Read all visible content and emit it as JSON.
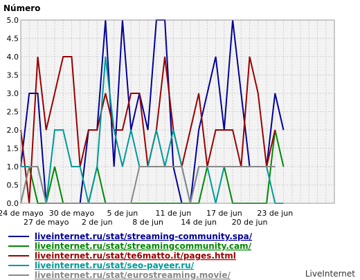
{
  "chart_data": {
    "type": "line",
    "ylabel": "Número",
    "ylim": [
      0,
      5
    ],
    "yticks": [
      "0.0",
      "0.5",
      "1.0",
      "1.5",
      "2.0",
      "2.5",
      "3.0",
      "3.5",
      "4.0",
      "4.5",
      "5.0"
    ],
    "grid": true,
    "x_dates": [
      "24 may",
      "25 may",
      "26 may",
      "27 may",
      "28 may",
      "29 may",
      "30 may",
      "31 may",
      "1 jun",
      "2 jun",
      "3 jun",
      "4 jun",
      "5 jun",
      "6 jun",
      "7 jun",
      "8 jun",
      "9 jun",
      "10 jun",
      "11 jun",
      "12 jun",
      "13 jun",
      "14 jun",
      "15 jun",
      "16 jun",
      "17 jun",
      "18 jun",
      "19 jun",
      "20 jun",
      "21 jun",
      "22 jun",
      "23 jun",
      "24 jun",
      "25 jun",
      "26 jun",
      "27 jun",
      "28 jun",
      "29 jun",
      "30 jun"
    ],
    "x_ticks_upper": [
      {
        "day": 0,
        "label": "24 de mayo"
      },
      {
        "day": 6,
        "label": "30 de mayo"
      },
      {
        "day": 12,
        "label": "5 de jun"
      },
      {
        "day": 18,
        "label": "11 de jun"
      },
      {
        "day": 24,
        "label": "17 de jun"
      },
      {
        "day": 30,
        "label": "23 de jun"
      }
    ],
    "x_ticks_lower": [
      {
        "day": 3,
        "label": "27 de mayo"
      },
      {
        "day": 9,
        "label": "2 de jun"
      },
      {
        "day": 15,
        "label": "8 de jun"
      },
      {
        "day": 21,
        "label": "14 de jun"
      },
      {
        "day": 27,
        "label": "20 de jun"
      }
    ],
    "series": [
      {
        "name": "liveinternet.ru/stat/streaming-community.spa/",
        "color": "#000099",
        "values": [
          1,
          3,
          3,
          0,
          0,
          0,
          0,
          0,
          2,
          2,
          5,
          1,
          5,
          2,
          3,
          2,
          5,
          5,
          1,
          0,
          0,
          2,
          3,
          4,
          2,
          5,
          3,
          1,
          1,
          1,
          3,
          2
        ]
      },
      {
        "name": "liveinternet.ru/stat/streamingcommunity.cam/",
        "color": "#008800",
        "values": [
          0,
          1,
          0,
          0,
          1,
          0,
          0,
          0,
          0,
          1,
          0,
          0,
          0,
          0,
          0,
          0,
          0,
          0,
          0,
          0,
          0,
          0,
          1,
          1,
          1,
          0,
          0,
          0,
          0,
          0,
          2,
          1
        ]
      },
      {
        "name": "liveinternet.ru/stat/te6matto.it/pages.html",
        "color": "#990000",
        "values": [
          2,
          0,
          4,
          2,
          3,
          4,
          4,
          1,
          2,
          2,
          3,
          2,
          2,
          3,
          3,
          1,
          2,
          4,
          2,
          1,
          2,
          3,
          1,
          2,
          2,
          2,
          1,
          4,
          3,
          1,
          2
        ]
      },
      {
        "name": "liveinternet.ru/stat/seo-payeer.ru/",
        "color": "#009999",
        "values": [
          1,
          1,
          1,
          0,
          2,
          2,
          1,
          1,
          0,
          1,
          4,
          2,
          1,
          2,
          1,
          1,
          2,
          1,
          2,
          1,
          0,
          1,
          1,
          0,
          1,
          1,
          1,
          1,
          1,
          1,
          0,
          0
        ]
      },
      {
        "name": "liveinternet.ru/stat/eurostreaming.movie/",
        "color": "#888888",
        "values": [
          0,
          1,
          1,
          0,
          0,
          0,
          0,
          0,
          0,
          0,
          0,
          0,
          0,
          0,
          1,
          1,
          1,
          1,
          1,
          1,
          0,
          1,
          1,
          1,
          1,
          1,
          1,
          1,
          1,
          1,
          1
        ]
      }
    ]
  },
  "legend_labels": [
    "liveinternet.ru/stat/streaming-community.spa/",
    "liveinternet.ru/stat/streamingcommunity.cam/",
    "liveinternet.ru/stat/te6matto.it/pages.html",
    "liveinternet.ru/stat/seo-payeer.ru/",
    "liveinternet.ru/stat/eurostreaming.movie/"
  ],
  "brand": "LiveInternet"
}
